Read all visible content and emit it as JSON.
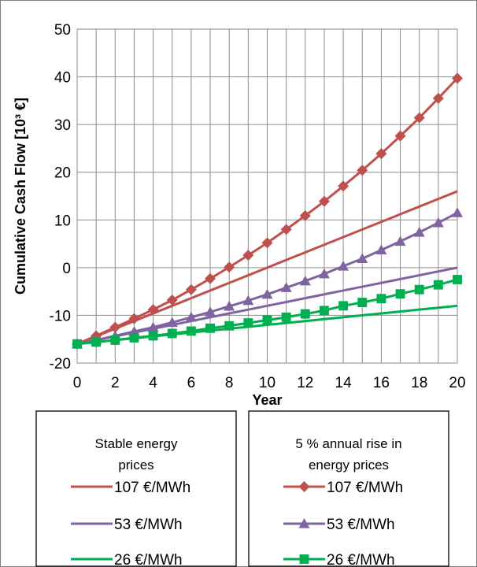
{
  "chart_data": {
    "type": "line",
    "title": "",
    "xlabel": "Year",
    "ylabel": "Cumulative Cash Flow [10³ €]",
    "xlim": [
      0,
      20
    ],
    "ylim": [
      -20,
      50
    ],
    "x_ticks": [
      0,
      2,
      4,
      6,
      8,
      10,
      12,
      14,
      16,
      18,
      20
    ],
    "y_ticks": [
      -20,
      -10,
      0,
      10,
      20,
      30,
      40,
      50
    ],
    "grid": true,
    "legend_position": "bottom",
    "legend_groups": [
      {
        "heading_lines": [
          "Stable energy",
          "prices"
        ],
        "entries": [
          "107 €/MWh",
          "53 €/MWh",
          "26 €/MWh"
        ]
      },
      {
        "heading_lines": [
          "5 % annual rise in",
          "energy prices"
        ],
        "entries": [
          "107 €/MWh",
          "53 €/MWh",
          "26 €/MWh"
        ]
      }
    ],
    "x": [
      0,
      1,
      2,
      3,
      4,
      5,
      6,
      7,
      8,
      9,
      10,
      11,
      12,
      13,
      14,
      15,
      16,
      17,
      18,
      19,
      20
    ],
    "series": [
      {
        "name": "107 €/MWh",
        "group": "Stable energy prices",
        "color": "#C0504D",
        "marker": "none",
        "values": [
          -16.0,
          -14.4,
          -12.8,
          -11.2,
          -9.6,
          -8.0,
          -6.4,
          -4.8,
          -3.2,
          -1.6,
          0.0,
          1.6,
          3.2,
          4.8,
          6.4,
          8.0,
          9.6,
          11.2,
          12.8,
          14.4,
          16.0
        ]
      },
      {
        "name": "53 €/MWh",
        "group": "Stable energy prices",
        "color": "#8064A2",
        "marker": "none",
        "values": [
          -16.0,
          -15.2,
          -14.4,
          -13.6,
          -12.8,
          -12.0,
          -11.2,
          -10.4,
          -9.6,
          -8.8,
          -8.0,
          -7.2,
          -6.4,
          -5.6,
          -4.8,
          -4.0,
          -3.2,
          -2.4,
          -1.6,
          -0.8,
          0.0
        ]
      },
      {
        "name": "26 €/MWh",
        "group": "Stable energy prices",
        "color": "#00B050",
        "marker": "none",
        "values": [
          -16.0,
          -15.6,
          -15.2,
          -14.8,
          -14.4,
          -14.0,
          -13.6,
          -13.2,
          -12.8,
          -12.4,
          -12.0,
          -11.6,
          -11.2,
          -10.8,
          -10.4,
          -10.0,
          -9.6,
          -9.2,
          -8.8,
          -8.4,
          -8.0
        ]
      },
      {
        "name": "107 €/MWh",
        "group": "5 % annual rise in energy prices",
        "color": "#C0504D",
        "marker": "diamond",
        "values": [
          -16.0,
          -14.3,
          -12.5,
          -10.7,
          -8.8,
          -6.8,
          -4.6,
          -2.3,
          0.1,
          2.6,
          5.2,
          8.0,
          10.9,
          13.9,
          17.1,
          20.4,
          23.9,
          27.6,
          31.4,
          35.5,
          39.7
        ]
      },
      {
        "name": "53 €/MWh",
        "group": "5 % annual rise in energy prices",
        "color": "#8064A2",
        "marker": "triangle",
        "values": [
          -16.0,
          -15.2,
          -14.3,
          -13.4,
          -12.5,
          -11.5,
          -10.4,
          -9.3,
          -8.1,
          -6.9,
          -5.6,
          -4.2,
          -2.8,
          -1.3,
          0.3,
          1.9,
          3.7,
          5.5,
          7.4,
          9.4,
          11.5
        ]
      },
      {
        "name": "26 €/MWh",
        "group": "5 % annual rise in energy prices",
        "color": "#00B050",
        "marker": "square",
        "values": [
          -16.0,
          -15.6,
          -15.2,
          -14.7,
          -14.3,
          -13.8,
          -13.3,
          -12.7,
          -12.2,
          -11.6,
          -11.0,
          -10.4,
          -9.7,
          -9.0,
          -8.0,
          -7.3,
          -6.5,
          -5.5,
          -4.6,
          -3.6,
          -2.5
        ]
      }
    ]
  }
}
